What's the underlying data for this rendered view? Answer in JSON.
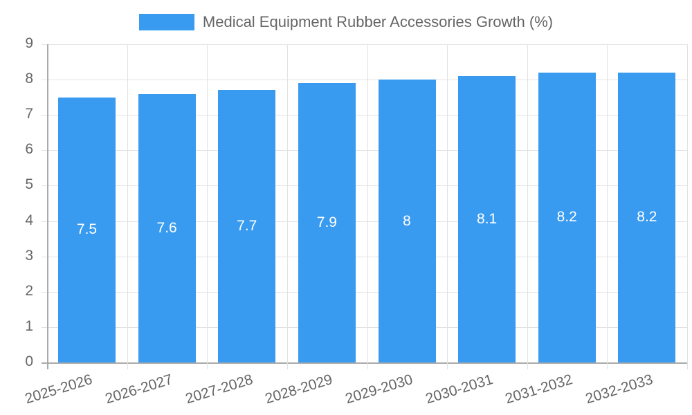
{
  "chart_data": {
    "type": "bar",
    "title": "",
    "legend": [
      {
        "label": "Medical Equipment Rubber Accessories Growth (%)",
        "color": "#399bef"
      }
    ],
    "legend_position": "top",
    "categories": [
      "2025-2026",
      "2026-2027",
      "2027-2028",
      "2028-2029",
      "2029-2030",
      "2030-2031",
      "2031-2032",
      "2032-2033"
    ],
    "series": [
      {
        "name": "Medical Equipment Rubber Accessories Growth (%)",
        "values": [
          7.5,
          7.6,
          7.7,
          7.9,
          8,
          8.1,
          8.2,
          8.2
        ],
        "color": "#399bef"
      }
    ],
    "data_labels": [
      "7.5",
      "7.6",
      "7.7",
      "7.9",
      "8",
      "8.1",
      "8.2",
      "8.2"
    ],
    "xlabel": "",
    "ylabel": "",
    "ylim": [
      0,
      9
    ],
    "yticks": [
      "0",
      "1",
      "2",
      "3",
      "4",
      "5",
      "6",
      "7",
      "8",
      "9"
    ],
    "grid": true
  }
}
